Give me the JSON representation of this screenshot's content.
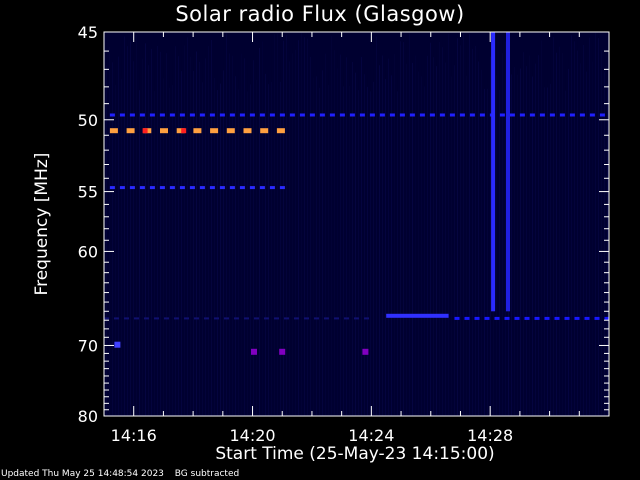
{
  "chart_data": {
    "type": "heatmap",
    "title": "Solar radio Flux (Glasgow)",
    "xlabel": "Start Time (25-May-23 14:15:00)",
    "ylabel": "Frequency [MHz]",
    "x_unit": "minutes",
    "xlim": [
      0,
      17
    ],
    "x_ticks": [
      {
        "value": 1,
        "label": "14:16"
      },
      {
        "value": 5,
        "label": "14:20"
      },
      {
        "value": 9,
        "label": "14:24"
      },
      {
        "value": 13,
        "label": "14:28"
      }
    ],
    "ylim": [
      45,
      80
    ],
    "y_scale": "reciprocal",
    "y_ticks": [
      45,
      50,
      55,
      60,
      70,
      80
    ],
    "y_tick_labels": [
      "45",
      "50",
      "55",
      "60",
      "70",
      "80"
    ],
    "colormap": [
      "#000030",
      "#1010ff",
      "#7a00c8",
      "#ff2020",
      "#ffa040"
    ],
    "features": [
      {
        "kind": "dashed",
        "freq": 50.7,
        "t_start": 0.2,
        "t_end": 6.2,
        "intensity": "high",
        "color": "#ffa040"
      },
      {
        "kind": "dashed",
        "freq": 49.7,
        "t_start": 0.2,
        "t_end": 17,
        "intensity": "low",
        "color": "#2020ff"
      },
      {
        "kind": "dashed",
        "freq": 54.7,
        "t_start": 0.2,
        "t_end": 6.2,
        "intensity": "low",
        "color": "#2a2aff"
      },
      {
        "kind": "segment",
        "freq": 66.5,
        "t_start": 9.5,
        "t_end": 11.6,
        "intensity": "medium",
        "color": "#3030ff"
      },
      {
        "kind": "dashed",
        "freq": 66.8,
        "t_start": 11.8,
        "t_end": 17,
        "intensity": "low",
        "color": "#1818ff"
      },
      {
        "kind": "dashed",
        "freq": 66.8,
        "t_start": 0,
        "t_end": 9,
        "intensity": "faint",
        "color": "#101070"
      },
      {
        "kind": "vertical",
        "time": 13.1,
        "f_start": 45,
        "f_end": 66,
        "intensity": "medium",
        "color": "#2a2aff"
      },
      {
        "kind": "vertical",
        "time": 13.6,
        "f_start": 45,
        "f_end": 66,
        "intensity": "medium",
        "color": "#2020e0"
      },
      {
        "kind": "dot",
        "time": 0.45,
        "freq": 69.9,
        "intensity": "medium",
        "color": "#4040ff"
      },
      {
        "kind": "dot",
        "time": 5.05,
        "freq": 70.8,
        "intensity": "medium",
        "color": "#8000c0"
      },
      {
        "kind": "dot",
        "time": 6.0,
        "freq": 70.8,
        "intensity": "medium",
        "color": "#8000c0"
      },
      {
        "kind": "dot",
        "time": 8.8,
        "freq": 70.8,
        "intensity": "medium",
        "color": "#8000c0"
      }
    ]
  },
  "footer": {
    "updated": "Updated Thu May 25 14:48:54 2023",
    "note": "BG subtracted"
  }
}
